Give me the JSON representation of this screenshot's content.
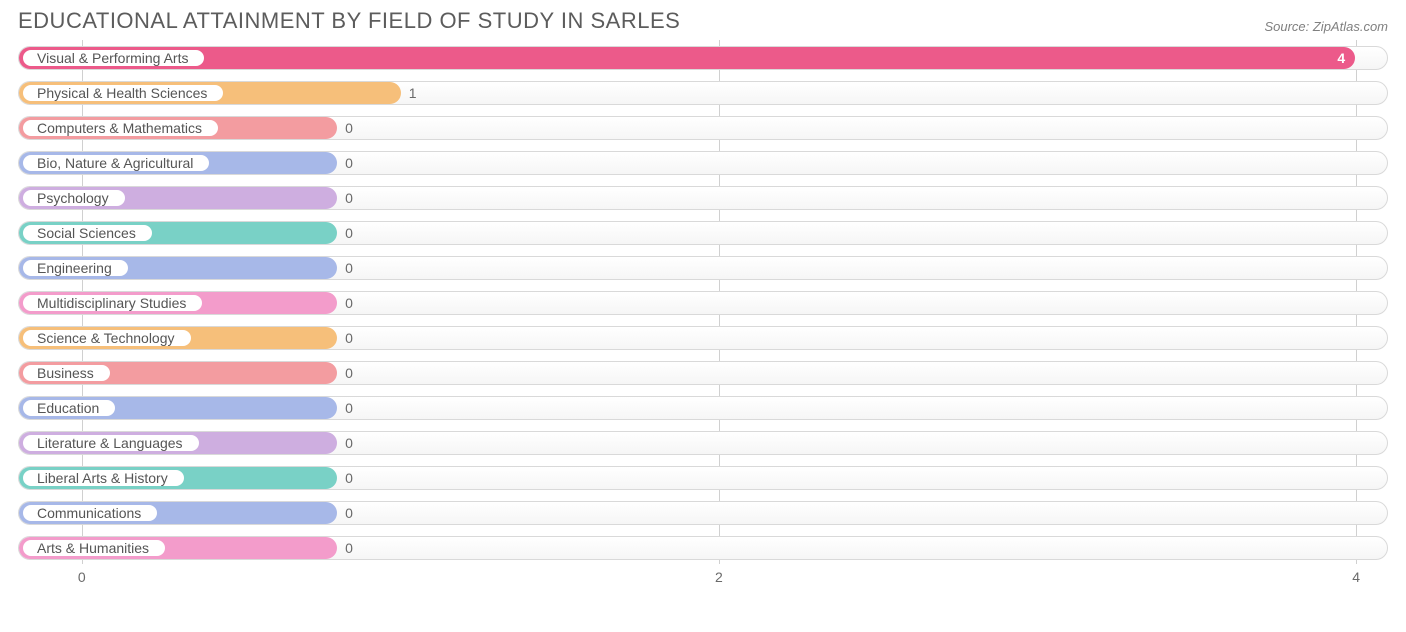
{
  "header": {
    "title": "EDUCATIONAL ATTAINMENT BY FIELD OF STUDY IN SARLES",
    "source": "Source: ZipAtlas.com"
  },
  "chart": {
    "type": "bar-horizontal",
    "xlim": [
      -0.2,
      4.1
    ],
    "x_ticks": [
      0,
      2,
      4
    ],
    "track_border_color": "#d9d9d9",
    "track_bg_top": "#ffffff",
    "track_bg_bottom": "#f6f6f6",
    "grid_color": "#d0d0d0",
    "title_color": "#5c5c5c",
    "label_fontsize": 14,
    "value_text_color": "#6a6a6a",
    "pill_bg": "#ffffff",
    "pill_text_color": "#555555",
    "min_fill_value": 0.8,
    "rows": [
      {
        "label": "Visual & Performing Arts",
        "value": 4,
        "value_text": "4",
        "color": "#ec5a8a",
        "value_inside": true,
        "value_inside_color": "#ffffff"
      },
      {
        "label": "Physical & Health Sciences",
        "value": 1,
        "value_text": "1",
        "color": "#f6bf7a",
        "value_inside": false,
        "value_inside_color": "#6a6a6a"
      },
      {
        "label": "Computers & Mathematics",
        "value": 0,
        "value_text": "0",
        "color": "#f39ca0",
        "value_inside": false,
        "value_inside_color": "#6a6a6a"
      },
      {
        "label": "Bio, Nature & Agricultural",
        "value": 0,
        "value_text": "0",
        "color": "#a7b8e8",
        "value_inside": false,
        "value_inside_color": "#6a6a6a"
      },
      {
        "label": "Psychology",
        "value": 0,
        "value_text": "0",
        "color": "#ceaee0",
        "value_inside": false,
        "value_inside_color": "#6a6a6a"
      },
      {
        "label": "Social Sciences",
        "value": 0,
        "value_text": "0",
        "color": "#79d1c6",
        "value_inside": false,
        "value_inside_color": "#6a6a6a"
      },
      {
        "label": "Engineering",
        "value": 0,
        "value_text": "0",
        "color": "#a7b8e8",
        "value_inside": false,
        "value_inside_color": "#6a6a6a"
      },
      {
        "label": "Multidisciplinary Studies",
        "value": 0,
        "value_text": "0",
        "color": "#f39ccb",
        "value_inside": false,
        "value_inside_color": "#6a6a6a"
      },
      {
        "label": "Science & Technology",
        "value": 0,
        "value_text": "0",
        "color": "#f6bf7a",
        "value_inside": false,
        "value_inside_color": "#6a6a6a"
      },
      {
        "label": "Business",
        "value": 0,
        "value_text": "0",
        "color": "#f39ca0",
        "value_inside": false,
        "value_inside_color": "#6a6a6a"
      },
      {
        "label": "Education",
        "value": 0,
        "value_text": "0",
        "color": "#a7b8e8",
        "value_inside": false,
        "value_inside_color": "#6a6a6a"
      },
      {
        "label": "Literature & Languages",
        "value": 0,
        "value_text": "0",
        "color": "#ceaee0",
        "value_inside": false,
        "value_inside_color": "#6a6a6a"
      },
      {
        "label": "Liberal Arts & History",
        "value": 0,
        "value_text": "0",
        "color": "#79d1c6",
        "value_inside": false,
        "value_inside_color": "#6a6a6a"
      },
      {
        "label": "Communications",
        "value": 0,
        "value_text": "0",
        "color": "#a7b8e8",
        "value_inside": false,
        "value_inside_color": "#6a6a6a"
      },
      {
        "label": "Arts & Humanities",
        "value": 0,
        "value_text": "0",
        "color": "#f39ccb",
        "value_inside": false,
        "value_inside_color": "#6a6a6a"
      }
    ]
  }
}
